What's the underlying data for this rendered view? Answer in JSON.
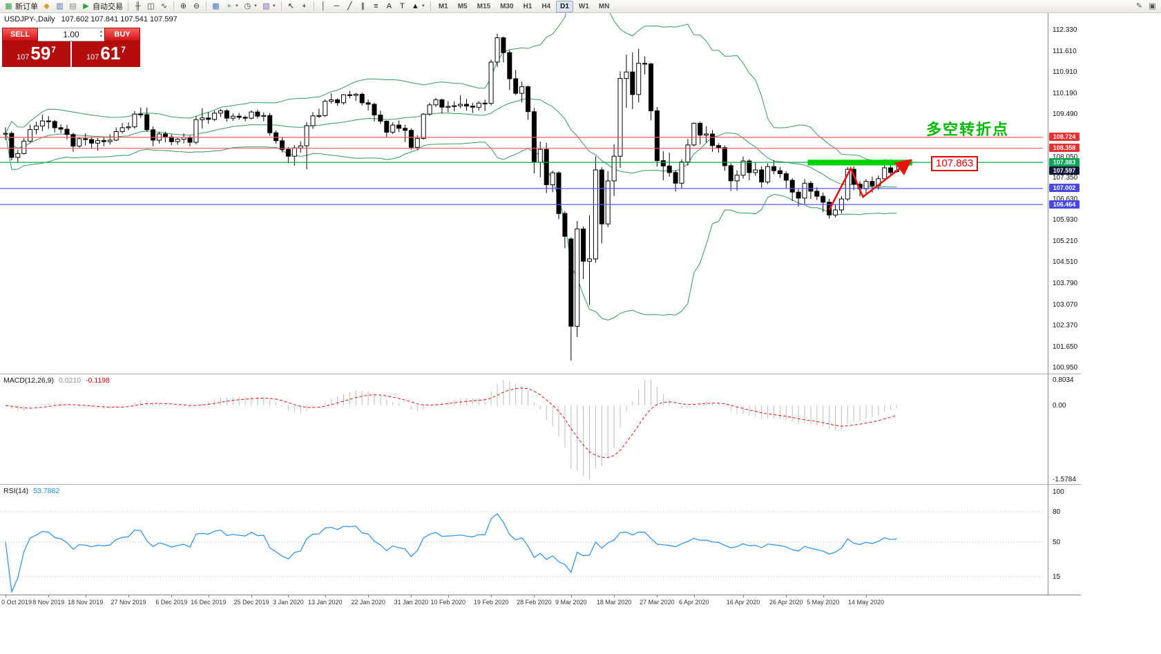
{
  "toolbar": {
    "items": [
      {
        "type": "button",
        "name": "new-order-button",
        "glyph": "▦",
        "glyph_color": "#2f9e4f",
        "label": "新订单"
      },
      {
        "type": "button",
        "name": "profiles-icon",
        "glyph": "◆",
        "glyph_color": "#d9a21b"
      },
      {
        "type": "button",
        "name": "market-watch-icon",
        "glyph": "▥",
        "glyph_color": "#476fb3"
      },
      {
        "type": "button",
        "name": "data-window-icon",
        "glyph": "▤",
        "glyph_color": "#8a8a8a"
      },
      {
        "type": "button",
        "name": "auto-trading-button",
        "glyph": "▶",
        "glyph_color": "#21a637",
        "label": "自动交易"
      },
      {
        "type": "sep"
      },
      {
        "type": "button",
        "name": "bar-chart-icon",
        "glyph": "╫",
        "glyph_color": "#3c3c3c"
      },
      {
        "type": "button",
        "name": "candlestick-chart-icon",
        "glyph": "◫",
        "glyph_color": "#3c3c3c"
      },
      {
        "type": "button",
        "name": "line-chart-icon",
        "glyph": "∿",
        "glyph_color": "#3c3c3c"
      },
      {
        "type": "sep"
      },
      {
        "type": "button",
        "name": "zoom-in-icon",
        "glyph": "⊕",
        "glyph_color": "#3c3c3c"
      },
      {
        "type": "button",
        "name": "zoom-out-icon",
        "glyph": "⊖",
        "glyph_color": "#3c3c3c"
      },
      {
        "type": "sep"
      },
      {
        "type": "button",
        "name": "tile-windows-icon",
        "glyph": "▦",
        "glyph_color": "#3b79c0"
      },
      {
        "type": "button",
        "name": "indicators-icon",
        "glyph": "+",
        "glyph_color": "#1ba32b",
        "dropdown": true
      },
      {
        "type": "button",
        "name": "periods-icon",
        "glyph": "◷",
        "glyph_color": "#3c3c3c",
        "dropdown": true
      },
      {
        "type": "button",
        "name": "templates-icon",
        "glyph": "▧",
        "glyph_color": "#7a68ad",
        "dropdown": true
      },
      {
        "type": "sep"
      },
      {
        "type": "button",
        "name": "cursor-icon",
        "glyph": "↖",
        "glyph_color": "#222222"
      },
      {
        "type": "button",
        "name": "crosshair-icon",
        "glyph": "+",
        "glyph_color": "#222222"
      },
      {
        "type": "sep"
      },
      {
        "type": "button",
        "name": "vertical-line-icon",
        "glyph": "│",
        "glyph_color": "#222222"
      },
      {
        "type": "button",
        "name": "horizontal-line-icon",
        "glyph": "─",
        "glyph_color": "#222222"
      },
      {
        "type": "button",
        "name": "trendline-icon",
        "glyph": "╱",
        "glyph_color": "#222222"
      },
      {
        "type": "button",
        "name": "equidistant-channel-icon",
        "glyph": "∥",
        "glyph_color": "#222222"
      },
      {
        "type": "button",
        "name": "fibonacci-icon",
        "glyph": "≡",
        "glyph_color": "#222222"
      },
      {
        "type": "button",
        "name": "text-icon",
        "glyph": "A",
        "glyph_color": "#222222"
      },
      {
        "type": "button",
        "name": "text-label-icon",
        "glyph": "T",
        "glyph_color": "#222222"
      },
      {
        "type": "button",
        "name": "arrows-icon",
        "glyph": "▲",
        "glyph_color": "#222222",
        "dropdown": true
      },
      {
        "type": "sep"
      },
      {
        "type": "timeframes"
      },
      {
        "type": "spacer"
      },
      {
        "type": "button",
        "name": "pencil-icon",
        "glyph": "✎",
        "glyph_color": "#555555"
      },
      {
        "type": "button",
        "name": "new-window-icon",
        "glyph": "▣",
        "glyph_color": "#555555"
      }
    ],
    "timeframes": [
      "M1",
      "M5",
      "M15",
      "M30",
      "H1",
      "H4",
      "D1",
      "W1",
      "MN"
    ],
    "active_timeframe": "D1"
  },
  "chart_header": {
    "symbol": "USDJPY-,Daily",
    "ohlc": "107.602 107.841 107.541 107.597"
  },
  "one_click": {
    "sell_label": "SELL",
    "buy_label": "BUY",
    "volume": "1.00",
    "sell_price": {
      "prefix": "107",
      "big": "59",
      "sup": "7"
    },
    "buy_price": {
      "prefix": "107",
      "big": "61",
      "sup": "7"
    }
  },
  "annotations": {
    "turning_point_text": "多空转折点",
    "price_callout": "107.863"
  },
  "chart_data": {
    "type": "candlestick",
    "symbol": "USDJPY",
    "timeframe": "Daily",
    "candles": [
      [
        108.85,
        109.06,
        108.64,
        108.86
      ],
      [
        108.86,
        108.93,
        107.95,
        108.05
      ],
      [
        108.05,
        108.31,
        107.89,
        108.18
      ],
      [
        108.18,
        108.7,
        108.15,
        108.6
      ],
      [
        108.6,
        109.15,
        108.55,
        108.99
      ],
      [
        108.99,
        109.25,
        108.83,
        109.11
      ],
      [
        109.11,
        109.49,
        108.93,
        109.28
      ],
      [
        109.28,
        109.44,
        109.01,
        109.26
      ],
      [
        109.26,
        109.31,
        108.89,
        109.05
      ],
      [
        109.05,
        109.16,
        108.87,
        109.0
      ],
      [
        109.0,
        109.15,
        108.65,
        108.82
      ],
      [
        108.82,
        108.88,
        108.24,
        108.43
      ],
      [
        108.43,
        108.72,
        108.38,
        108.68
      ],
      [
        108.68,
        108.86,
        108.45,
        108.65
      ],
      [
        108.65,
        108.75,
        108.34,
        108.53
      ],
      [
        108.53,
        108.7,
        108.28,
        108.62
      ],
      [
        108.62,
        108.74,
        108.43,
        108.58
      ],
      [
        108.58,
        108.83,
        108.48,
        108.63
      ],
      [
        108.63,
        109.06,
        108.6,
        108.92
      ],
      [
        108.92,
        109.21,
        108.85,
        109.05
      ],
      [
        109.05,
        109.23,
        108.96,
        109.08
      ],
      [
        109.08,
        109.61,
        109.02,
        109.51
      ],
      [
        109.51,
        109.73,
        109.38,
        109.49
      ],
      [
        109.49,
        109.73,
        108.92,
        108.98
      ],
      [
        108.98,
        109.09,
        108.43,
        108.63
      ],
      [
        108.63,
        108.91,
        108.52,
        108.84
      ],
      [
        108.84,
        108.92,
        108.56,
        108.74
      ],
      [
        108.74,
        108.83,
        108.46,
        108.58
      ],
      [
        108.58,
        108.73,
        108.48,
        108.66
      ],
      [
        108.66,
        108.86,
        108.52,
        108.72
      ],
      [
        108.72,
        108.78,
        108.42,
        108.56
      ],
      [
        108.56,
        109.45,
        108.49,
        109.32
      ],
      [
        109.32,
        109.7,
        109.02,
        109.38
      ],
      [
        109.38,
        109.58,
        109.18,
        109.33
      ],
      [
        109.33,
        109.63,
        109.27,
        109.54
      ],
      [
        109.54,
        109.68,
        109.42,
        109.62
      ],
      [
        109.62,
        109.68,
        109.25,
        109.37
      ],
      [
        109.37,
        109.53,
        109.28,
        109.44
      ],
      [
        109.44,
        109.55,
        109.32,
        109.4
      ],
      [
        109.4,
        109.46,
        109.27,
        109.37
      ],
      [
        109.37,
        109.64,
        109.33,
        109.58
      ],
      [
        109.58,
        109.66,
        109.36,
        109.44
      ],
      [
        109.44,
        109.57,
        109.27,
        109.46
      ],
      [
        109.46,
        109.55,
        108.78,
        108.88
      ],
      [
        108.88,
        108.96,
        108.51,
        108.61
      ],
      [
        108.61,
        108.73,
        108.22,
        108.32
      ],
      [
        108.32,
        108.4,
        107.85,
        108.09
      ],
      [
        108.09,
        108.47,
        107.77,
        108.37
      ],
      [
        108.37,
        108.59,
        108.21,
        108.44
      ],
      [
        108.44,
        109.24,
        107.65,
        109.12
      ],
      [
        109.12,
        109.58,
        109.01,
        109.45
      ],
      [
        109.45,
        109.69,
        109.38,
        109.46
      ],
      [
        109.46,
        110.01,
        109.42,
        109.94
      ],
      [
        109.94,
        110.21,
        109.86,
        109.99
      ],
      [
        109.99,
        110.04,
        109.79,
        109.89
      ],
      [
        109.89,
        110.18,
        109.83,
        110.16
      ],
      [
        110.16,
        110.29,
        110.04,
        110.14
      ],
      [
        110.14,
        110.22,
        109.95,
        110.18
      ],
      [
        110.18,
        110.23,
        109.8,
        109.89
      ],
      [
        109.89,
        110.0,
        109.63,
        109.84
      ],
      [
        109.84,
        109.89,
        109.26,
        109.48
      ],
      [
        109.48,
        109.62,
        109.18,
        109.27
      ],
      [
        109.27,
        109.29,
        108.73,
        108.9
      ],
      [
        108.9,
        109.23,
        108.84,
        109.14
      ],
      [
        109.14,
        109.29,
        108.9,
        109.03
      ],
      [
        109.03,
        109.15,
        108.57,
        108.96
      ],
      [
        108.96,
        109.03,
        108.31,
        108.39
      ],
      [
        108.39,
        108.79,
        108.3,
        108.69
      ],
      [
        108.69,
        109.54,
        108.65,
        109.51
      ],
      [
        109.51,
        109.89,
        109.45,
        109.82
      ],
      [
        109.82,
        110.05,
        109.75,
        109.99
      ],
      [
        109.99,
        110.03,
        109.53,
        109.74
      ],
      [
        109.74,
        109.95,
        109.57,
        109.77
      ],
      [
        109.77,
        109.94,
        109.61,
        109.79
      ],
      [
        109.79,
        110.14,
        109.71,
        109.84
      ],
      [
        109.84,
        110.02,
        109.62,
        109.78
      ],
      [
        109.78,
        109.89,
        109.55,
        109.74
      ],
      [
        109.74,
        109.94,
        109.63,
        109.88
      ],
      [
        109.88,
        110.0,
        109.62,
        109.87
      ],
      [
        109.87,
        111.35,
        109.8,
        111.26
      ],
      [
        111.26,
        112.22,
        111.1,
        112.08
      ],
      [
        112.08,
        112.12,
        111.25,
        111.58
      ],
      [
        111.58,
        111.66,
        110.32,
        110.7
      ],
      [
        110.7,
        111.0,
        110.15,
        110.21
      ],
      [
        110.21,
        110.6,
        109.9,
        110.43
      ],
      [
        110.43,
        110.47,
        109.32,
        109.59
      ],
      [
        109.59,
        109.72,
        107.51,
        107.89
      ],
      [
        107.89,
        108.58,
        107.38,
        108.32
      ],
      [
        108.32,
        108.54,
        106.85,
        107.13
      ],
      [
        107.13,
        107.6,
        106.88,
        107.53
      ],
      [
        107.53,
        107.58,
        105.97,
        106.16
      ],
      [
        106.16,
        106.24,
        104.99,
        105.39
      ],
      [
        105.3,
        105.36,
        101.2,
        102.36
      ],
      [
        102.36,
        105.91,
        102.0,
        105.64
      ],
      [
        105.64,
        105.72,
        103.95,
        104.55
      ],
      [
        104.55,
        106.1,
        103.08,
        104.63
      ],
      [
        104.63,
        108.09,
        104.5,
        107.63
      ],
      [
        107.63,
        107.72,
        105.15,
        105.81
      ],
      [
        105.81,
        107.58,
        105.7,
        107.26
      ],
      [
        107.26,
        108.5,
        106.75,
        108.09
      ],
      [
        108.09,
        110.95,
        107.7,
        110.71
      ],
      [
        110.71,
        111.51,
        109.72,
        110.93
      ],
      [
        110.93,
        111.59,
        109.68,
        110.17
      ],
      [
        110.17,
        111.71,
        109.9,
        111.22
      ],
      [
        111.22,
        111.45,
        110.85,
        111.2
      ],
      [
        111.2,
        111.24,
        109.3,
        109.62
      ],
      [
        109.62,
        109.75,
        107.74,
        107.94
      ],
      [
        107.94,
        108.26,
        107.28,
        107.76
      ],
      [
        107.76,
        108.21,
        107.4,
        107.54
      ],
      [
        107.54,
        107.62,
        106.9,
        107.18
      ],
      [
        107.18,
        107.98,
        106.99,
        107.9
      ],
      [
        107.9,
        108.67,
        107.77,
        108.47
      ],
      [
        108.47,
        109.23,
        108.42,
        109.2
      ],
      [
        109.2,
        109.26,
        108.49,
        108.8
      ],
      [
        108.8,
        109.1,
        108.55,
        108.84
      ],
      [
        108.84,
        108.97,
        108.24,
        108.45
      ],
      [
        108.45,
        108.53,
        108.21,
        108.38
      ],
      [
        108.38,
        108.45,
        107.6,
        107.77
      ],
      [
        107.77,
        107.85,
        106.92,
        107.26
      ],
      [
        107.26,
        107.61,
        106.93,
        107.45
      ],
      [
        107.45,
        108.08,
        107.33,
        107.93
      ],
      [
        107.93,
        107.99,
        107.28,
        107.54
      ],
      [
        107.54,
        107.88,
        107.43,
        107.63
      ],
      [
        107.63,
        107.75,
        107.03,
        107.22
      ],
      [
        107.22,
        107.85,
        107.15,
        107.74
      ],
      [
        107.74,
        107.96,
        107.48,
        107.6
      ],
      [
        107.6,
        107.73,
        107.36,
        107.5
      ],
      [
        107.5,
        107.58,
        107.0,
        107.28
      ],
      [
        107.28,
        107.35,
        106.58,
        106.88
      ],
      [
        106.88,
        106.98,
        106.4,
        106.68
      ],
      [
        106.68,
        107.32,
        106.47,
        107.18
      ],
      [
        107.18,
        107.25,
        106.65,
        106.91
      ],
      [
        106.91,
        107.04,
        106.62,
        106.74
      ],
      [
        106.74,
        106.86,
        106.2,
        106.54
      ],
      [
        106.54,
        106.65,
        105.99,
        106.11
      ],
      [
        106.11,
        106.48,
        106.02,
        106.28
      ],
      [
        106.28,
        106.75,
        106.16,
        106.65
      ],
      [
        106.65,
        107.72,
        106.58,
        107.65
      ],
      [
        107.65,
        107.75,
        106.95,
        107.15
      ],
      [
        107.15,
        107.25,
        106.74,
        106.99
      ],
      [
        106.99,
        107.32,
        106.77,
        107.24
      ],
      [
        107.24,
        107.4,
        106.86,
        107.09
      ],
      [
        107.09,
        107.44,
        106.96,
        107.33
      ],
      [
        107.33,
        107.91,
        107.26,
        107.7
      ],
      [
        107.7,
        107.98,
        107.46,
        107.54
      ],
      [
        107.602,
        107.841,
        107.541,
        107.597
      ]
    ],
    "x_labels": [
      "0 Oct 2019",
      "8 Nov 2019",
      "18 Nov 2019",
      "27 Nov 2019",
      "6 Dec 2019",
      "16 Dec 2019",
      "25 Dec 2019",
      "3 Jan 2020",
      "13 Jan 2020",
      "22 Jan 2020",
      "31 Jan 2020",
      "10 Feb 2020",
      "19 Feb 2020",
      "28 Feb 2020",
      "9 Mar 2020",
      "18 Mar 2020",
      "27 Mar 2020",
      "6 Apr 2020",
      "16 Apr 2020",
      "26 Apr 2020",
      "5 May 2020",
      "14 May 2020"
    ],
    "x_label_indices": [
      0,
      7,
      13,
      20,
      27,
      33,
      40,
      46,
      52,
      59,
      66,
      72,
      79,
      86,
      92,
      99,
      106,
      112,
      120,
      127,
      133,
      140
    ],
    "y_axis_ticks": [
      "112.330",
      "111.610",
      "110.910",
      "110.190",
      "109.490",
      "108.050",
      "107.350",
      "106.630",
      "105.930",
      "105.210",
      "104.510",
      "103.790",
      "103.070",
      "102.370",
      "101.650",
      "100.950"
    ],
    "price_lines": [
      {
        "price": 108.724,
        "color": "#ff5a5a"
      },
      {
        "price": 108.358,
        "color": "#ff5a5a"
      },
      {
        "price": 107.883,
        "color": "#00b050"
      },
      {
        "price": 107.002,
        "color": "#5a5aff"
      },
      {
        "price": 106.464,
        "color": "#5a5aff"
      }
    ],
    "price_tags": [
      {
        "text": "108.724",
        "color": "#e83030"
      },
      {
        "text": "108.358",
        "color": "#e83030"
      },
      {
        "text": "107.883",
        "color": "#00a651"
      },
      {
        "text": "107.597",
        "color": "#16163a"
      },
      {
        "text": "107.002",
        "color": "#4848e8"
      },
      {
        "text": "106.464",
        "color": "#4848e8"
      }
    ],
    "highlight_zone": {
      "start_index": 130.5,
      "end_index": 147.5,
      "price_top": 107.97,
      "price_bottom": 107.78,
      "color": "#00d200"
    },
    "trend_arrow": {
      "color": "#f01010",
      "points": [
        [
          134,
          106.28
        ],
        [
          137.5,
          107.68
        ],
        [
          139.5,
          106.72
        ],
        [
          147,
          107.92
        ]
      ]
    },
    "indicators": {
      "bollinger": {
        "period": 20,
        "deviation": 2,
        "color": "#2f9e5a"
      },
      "macd": {
        "label": "MACD(12,26,9)",
        "value_main": "0.0210",
        "value_signal": "-0.1198",
        "fast": 12,
        "slow": 26,
        "signal": 9,
        "histogram_color": "#bdbdbd",
        "signal_color": "#ff0000",
        "scale_labels": [
          "0.8034",
          "0.00",
          "-1.5784"
        ]
      },
      "rsi": {
        "label": "RSI(14)",
        "value": "53.7882",
        "period": 14,
        "color": "#1e90ff",
        "levels": [
          80,
          50,
          15
        ],
        "scale_labels": [
          "100",
          "80",
          "50",
          "15"
        ]
      }
    }
  }
}
